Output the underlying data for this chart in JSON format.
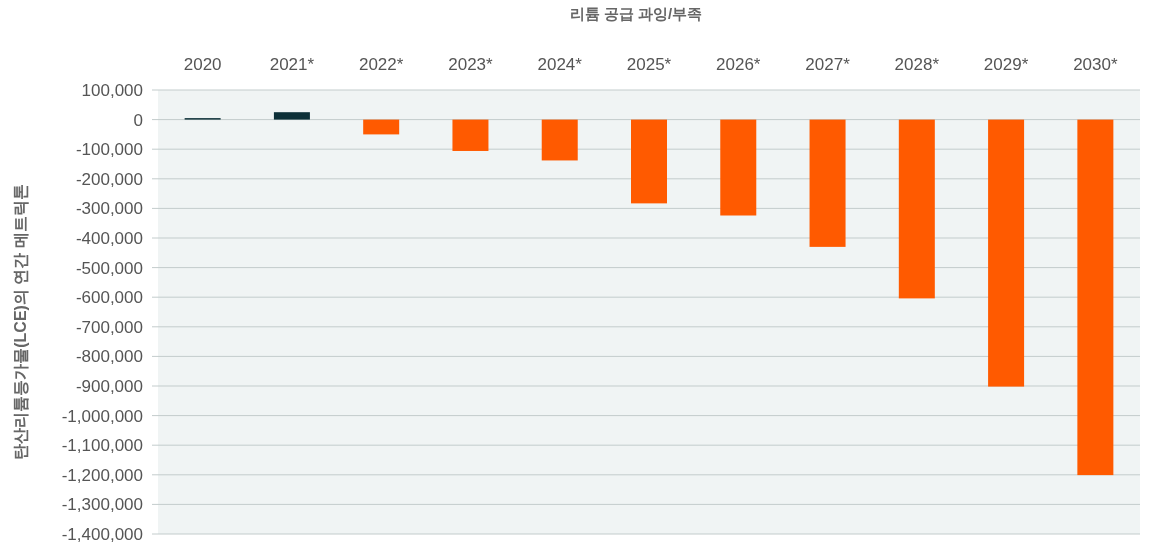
{
  "chart_data": {
    "type": "bar",
    "title": "리튬 공급 과잉/부족",
    "ylabel": "탄산리튬등가물(LCE)의 연간 메트릭톤",
    "categories": [
      "2020",
      "2021*",
      "2022*",
      "2023*",
      "2024*",
      "2025*",
      "2026*",
      "2027*",
      "2028*",
      "2029*",
      "2030*"
    ],
    "values": [
      5000,
      25000,
      -50000,
      -106000,
      -138000,
      -283000,
      -324000,
      -430000,
      -604000,
      -902000,
      -1201000
    ],
    "colors": [
      "#0d3038",
      "#0d3038",
      "#ff5a00",
      "#ff5a00",
      "#ff5a00",
      "#ff5a00",
      "#ff5a00",
      "#ff5a00",
      "#ff5a00",
      "#ff5a00",
      "#ff5a00"
    ],
    "ylim": [
      -1400000,
      100000
    ],
    "yticks": [
      {
        "value": 100000,
        "label": "100,000"
      },
      0,
      {
        "value": -100000,
        "label": "-100,000"
      },
      {
        "value": -200000,
        "label": "-200,000"
      },
      {
        "value": -300000,
        "label": "-300,000"
      },
      {
        "value": -400000,
        "label": "-400,000"
      },
      {
        "value": -500000,
        "label": "-500,000"
      },
      {
        "value": -600000,
        "label": "-600,000"
      },
      {
        "value": -700000,
        "label": "-700,000"
      },
      {
        "value": -800000,
        "label": "-800,000"
      },
      {
        "value": -900000,
        "label": "-900,000"
      },
      {
        "value": -1000000,
        "label": "-1,000,000"
      },
      {
        "value": -1100000,
        "label": "-1,100,000"
      },
      {
        "value": -1200000,
        "label": "-1,200,000"
      },
      {
        "value": -1300000,
        "label": "-1,300,000"
      },
      {
        "value": -1400000,
        "label": "-1,400,000"
      }
    ],
    "grid": "y"
  }
}
